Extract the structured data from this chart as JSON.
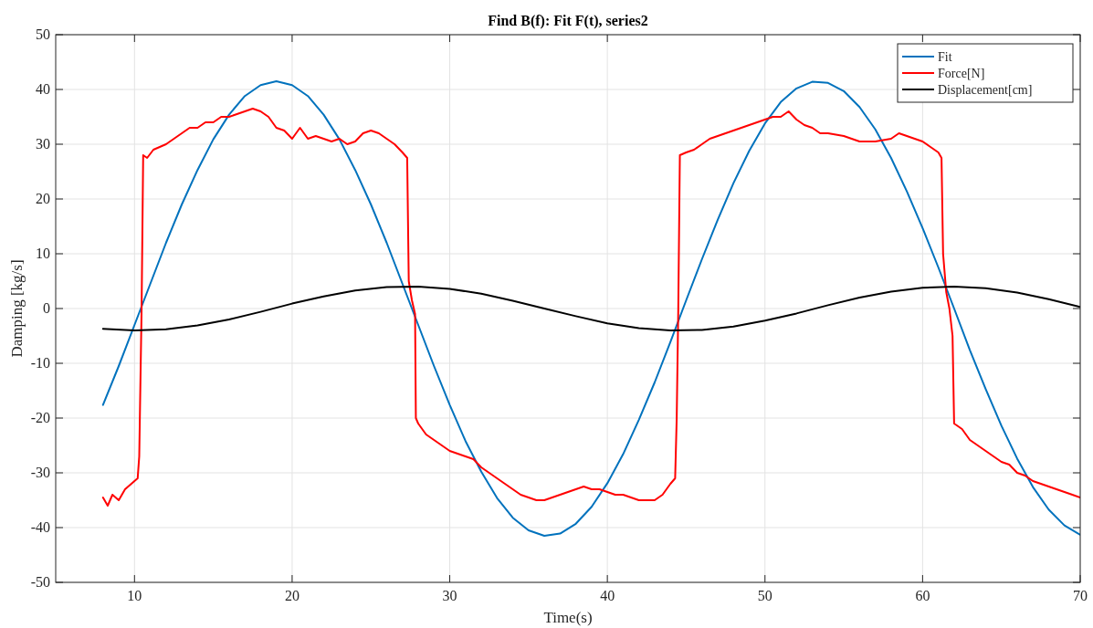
{
  "chart_data": {
    "type": "line",
    "title": "Find B(f): Fit F(t), series2",
    "xlabel": "Time(s)",
    "ylabel": "Damping [kg/s]",
    "xlim": [
      5,
      70
    ],
    "xticks": [
      10,
      20,
      30,
      40,
      50,
      60,
      70
    ],
    "ylim": [
      -50,
      50
    ],
    "yticks": [
      -50,
      -40,
      -30,
      -20,
      -10,
      0,
      10,
      20,
      30,
      40,
      50
    ],
    "grid": true,
    "legend": "top right",
    "line_style": "solid",
    "marker": "none",
    "series": [
      {
        "name": "Fit",
        "color": "#0072bd",
        "x": [
          8,
          9,
          10,
          11,
          12,
          13,
          14,
          15,
          16,
          17,
          18,
          19,
          20,
          21,
          22,
          23,
          24,
          25,
          26,
          27,
          28,
          29,
          30,
          31,
          32,
          33,
          34,
          35,
          36,
          37,
          38,
          39,
          40,
          41,
          42,
          43,
          44,
          45,
          46,
          47,
          48,
          49,
          50,
          51,
          52,
          53,
          54,
          55,
          56,
          57,
          58,
          59,
          60,
          61,
          62,
          63,
          64,
          65,
          66,
          67,
          68,
          69,
          70
        ],
        "values": [
          -17.6,
          -10.5,
          -3.0,
          4.5,
          12.0,
          19.0,
          25.3,
          30.9,
          35.4,
          38.8,
          40.8,
          41.5,
          40.8,
          38.8,
          35.4,
          30.9,
          25.3,
          19.0,
          12.0,
          4.5,
          -3.0,
          -10.5,
          -17.6,
          -24.2,
          -29.8,
          -34.6,
          -38.2,
          -40.5,
          -41.5,
          -41.1,
          -39.3,
          -36.2,
          -31.9,
          -26.6,
          -20.3,
          -13.5,
          -6.1,
          1.5,
          9.0,
          16.2,
          22.9,
          28.8,
          33.8,
          37.7,
          40.2,
          41.4,
          41.2,
          39.7,
          36.8,
          32.7,
          27.5,
          21.4,
          14.7,
          7.5,
          0,
          -7.6,
          -14.7,
          -21.4,
          -27.4,
          -32.6,
          -36.7,
          -39.6,
          -41.3
        ]
      },
      {
        "name": "Force[N]",
        "color": "#ff0000",
        "x": [
          8,
          8.3,
          8.6,
          9,
          9.4,
          9.8,
          10.2,
          10.3,
          10.45,
          10.55,
          10.8,
          11.2,
          11.6,
          12,
          12.5,
          13,
          13.5,
          14,
          14.5,
          15,
          15.5,
          16,
          16.5,
          17,
          17.5,
          18,
          18.5,
          19,
          19.5,
          20,
          20.5,
          21,
          21.5,
          22,
          22.5,
          23,
          23.5,
          24,
          24.5,
          25,
          25.5,
          26,
          26.5,
          27,
          27.3,
          27.4,
          27.6,
          27.8,
          27.85,
          28,
          28.5,
          29,
          29.5,
          30,
          30.5,
          31,
          31.5,
          32,
          32.5,
          33,
          33.5,
          34,
          34.5,
          35,
          35.5,
          36,
          36.5,
          37,
          37.5,
          38,
          38.5,
          39,
          39.5,
          40,
          40.5,
          41,
          41.5,
          42,
          42.5,
          43,
          43.5,
          44,
          44.3,
          44.4,
          44.5,
          44.6,
          45,
          45.5,
          46,
          46.5,
          47,
          48,
          49,
          50,
          50.5,
          51,
          51.5,
          52,
          52.5,
          53,
          53.5,
          54,
          55,
          56,
          57,
          58,
          58.5,
          59,
          59.5,
          60,
          60.5,
          61,
          61.2,
          61.3,
          61.5,
          61.7,
          61.9,
          62,
          62.5,
          63,
          63.5,
          64,
          64.5,
          65,
          65.5,
          66,
          66.5,
          67,
          67.5,
          68,
          68.5,
          69,
          69.5,
          70
        ],
        "values": [
          -34.5,
          -36,
          -34,
          -35,
          -33,
          -32,
          -31,
          -27,
          0,
          28,
          27.5,
          29,
          29.5,
          30,
          31,
          32,
          33,
          33,
          34,
          34,
          35,
          35,
          35.5,
          36,
          36.5,
          36,
          35,
          33,
          32.5,
          31,
          33,
          31,
          31.5,
          31,
          30.5,
          31,
          30,
          30.5,
          32,
          32.5,
          32,
          31,
          30,
          28.5,
          27.5,
          5,
          1.5,
          -1,
          -20,
          -21,
          -23,
          -24,
          -25,
          -26,
          -26.5,
          -27,
          -27.5,
          -29,
          -30,
          -31,
          -32,
          -33,
          -34,
          -34.5,
          -35,
          -35,
          -34.5,
          -34,
          -33.5,
          -33,
          -32.5,
          -33,
          -33,
          -33.5,
          -34,
          -34,
          -34.5,
          -35,
          -35,
          -35,
          -34,
          -32,
          -31,
          -20,
          0,
          28,
          28.5,
          29,
          30,
          31,
          31.5,
          32.5,
          33.5,
          34.5,
          35,
          35,
          36,
          34.5,
          33.5,
          33,
          32,
          32,
          31.5,
          30.5,
          30.5,
          31,
          32,
          31.5,
          31,
          30.5,
          29.5,
          28.5,
          27.5,
          10,
          3,
          0,
          -5,
          -21,
          -22,
          -24,
          -25,
          -26,
          -27,
          -28,
          -28.5,
          -30,
          -30.5,
          -31.5,
          -32,
          -32.5,
          -33,
          -33.5,
          -34,
          -34.5
        ]
      },
      {
        "name": "Displacement[cm]",
        "color": "#000000",
        "x": [
          8,
          10,
          12,
          14,
          16,
          18,
          20,
          22,
          24,
          26,
          28,
          30,
          32,
          34,
          36,
          38,
          40,
          42,
          44,
          46,
          48,
          50,
          52,
          54,
          56,
          58,
          60,
          62,
          64,
          66,
          68,
          70
        ],
        "values": [
          -3.7,
          -4.0,
          -3.8,
          -3.1,
          -2.0,
          -0.6,
          0.9,
          2.2,
          3.3,
          3.9,
          4.0,
          3.6,
          2.7,
          1.4,
          0.0,
          -1.4,
          -2.7,
          -3.6,
          -4.0,
          -3.9,
          -3.3,
          -2.2,
          -0.9,
          0.6,
          2.0,
          3.1,
          3.8,
          4.0,
          3.7,
          2.9,
          1.7,
          0.3
        ]
      }
    ]
  }
}
